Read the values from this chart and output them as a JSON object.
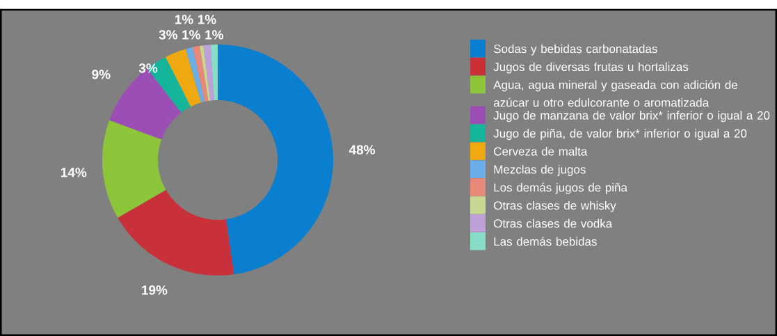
{
  "chart_data": {
    "type": "donut",
    "categories": [
      "Sodas y bebidas carbonatadas",
      "Jugos de diversas frutas u hortalizas",
      "Agua, agua mineral y gaseada con adición de azúcar u otro edulcorante o aromatizada",
      "Jugo de manzana de valor brix* inferior o igual a 20",
      "Jugo de piña, de valor brix* inferior o igual a 20",
      "Cerveza de malta",
      "Mezclas de jugos",
      "Los demás jugos de piña",
      "Otras clases de whisky",
      "Otras clases de vodka",
      "Las demás bebidas"
    ],
    "values": [
      48,
      19,
      14,
      9,
      3,
      3,
      1,
      1,
      0.5,
      1,
      1
    ],
    "value_labels": [
      "48%",
      "19%",
      "14%",
      "9%",
      "3%",
      "3%",
      "1%",
      "1%",
      null,
      "1%",
      "1%"
    ],
    "colors": [
      "#0a7fd0",
      "#c8313a",
      "#8cc43a",
      "#9b4fb5",
      "#14b59a",
      "#f0a810",
      "#6aaee8",
      "#e88878",
      "#c8d890",
      "#c0a0d8",
      "#88dcc8"
    ],
    "legend": "right"
  }
}
